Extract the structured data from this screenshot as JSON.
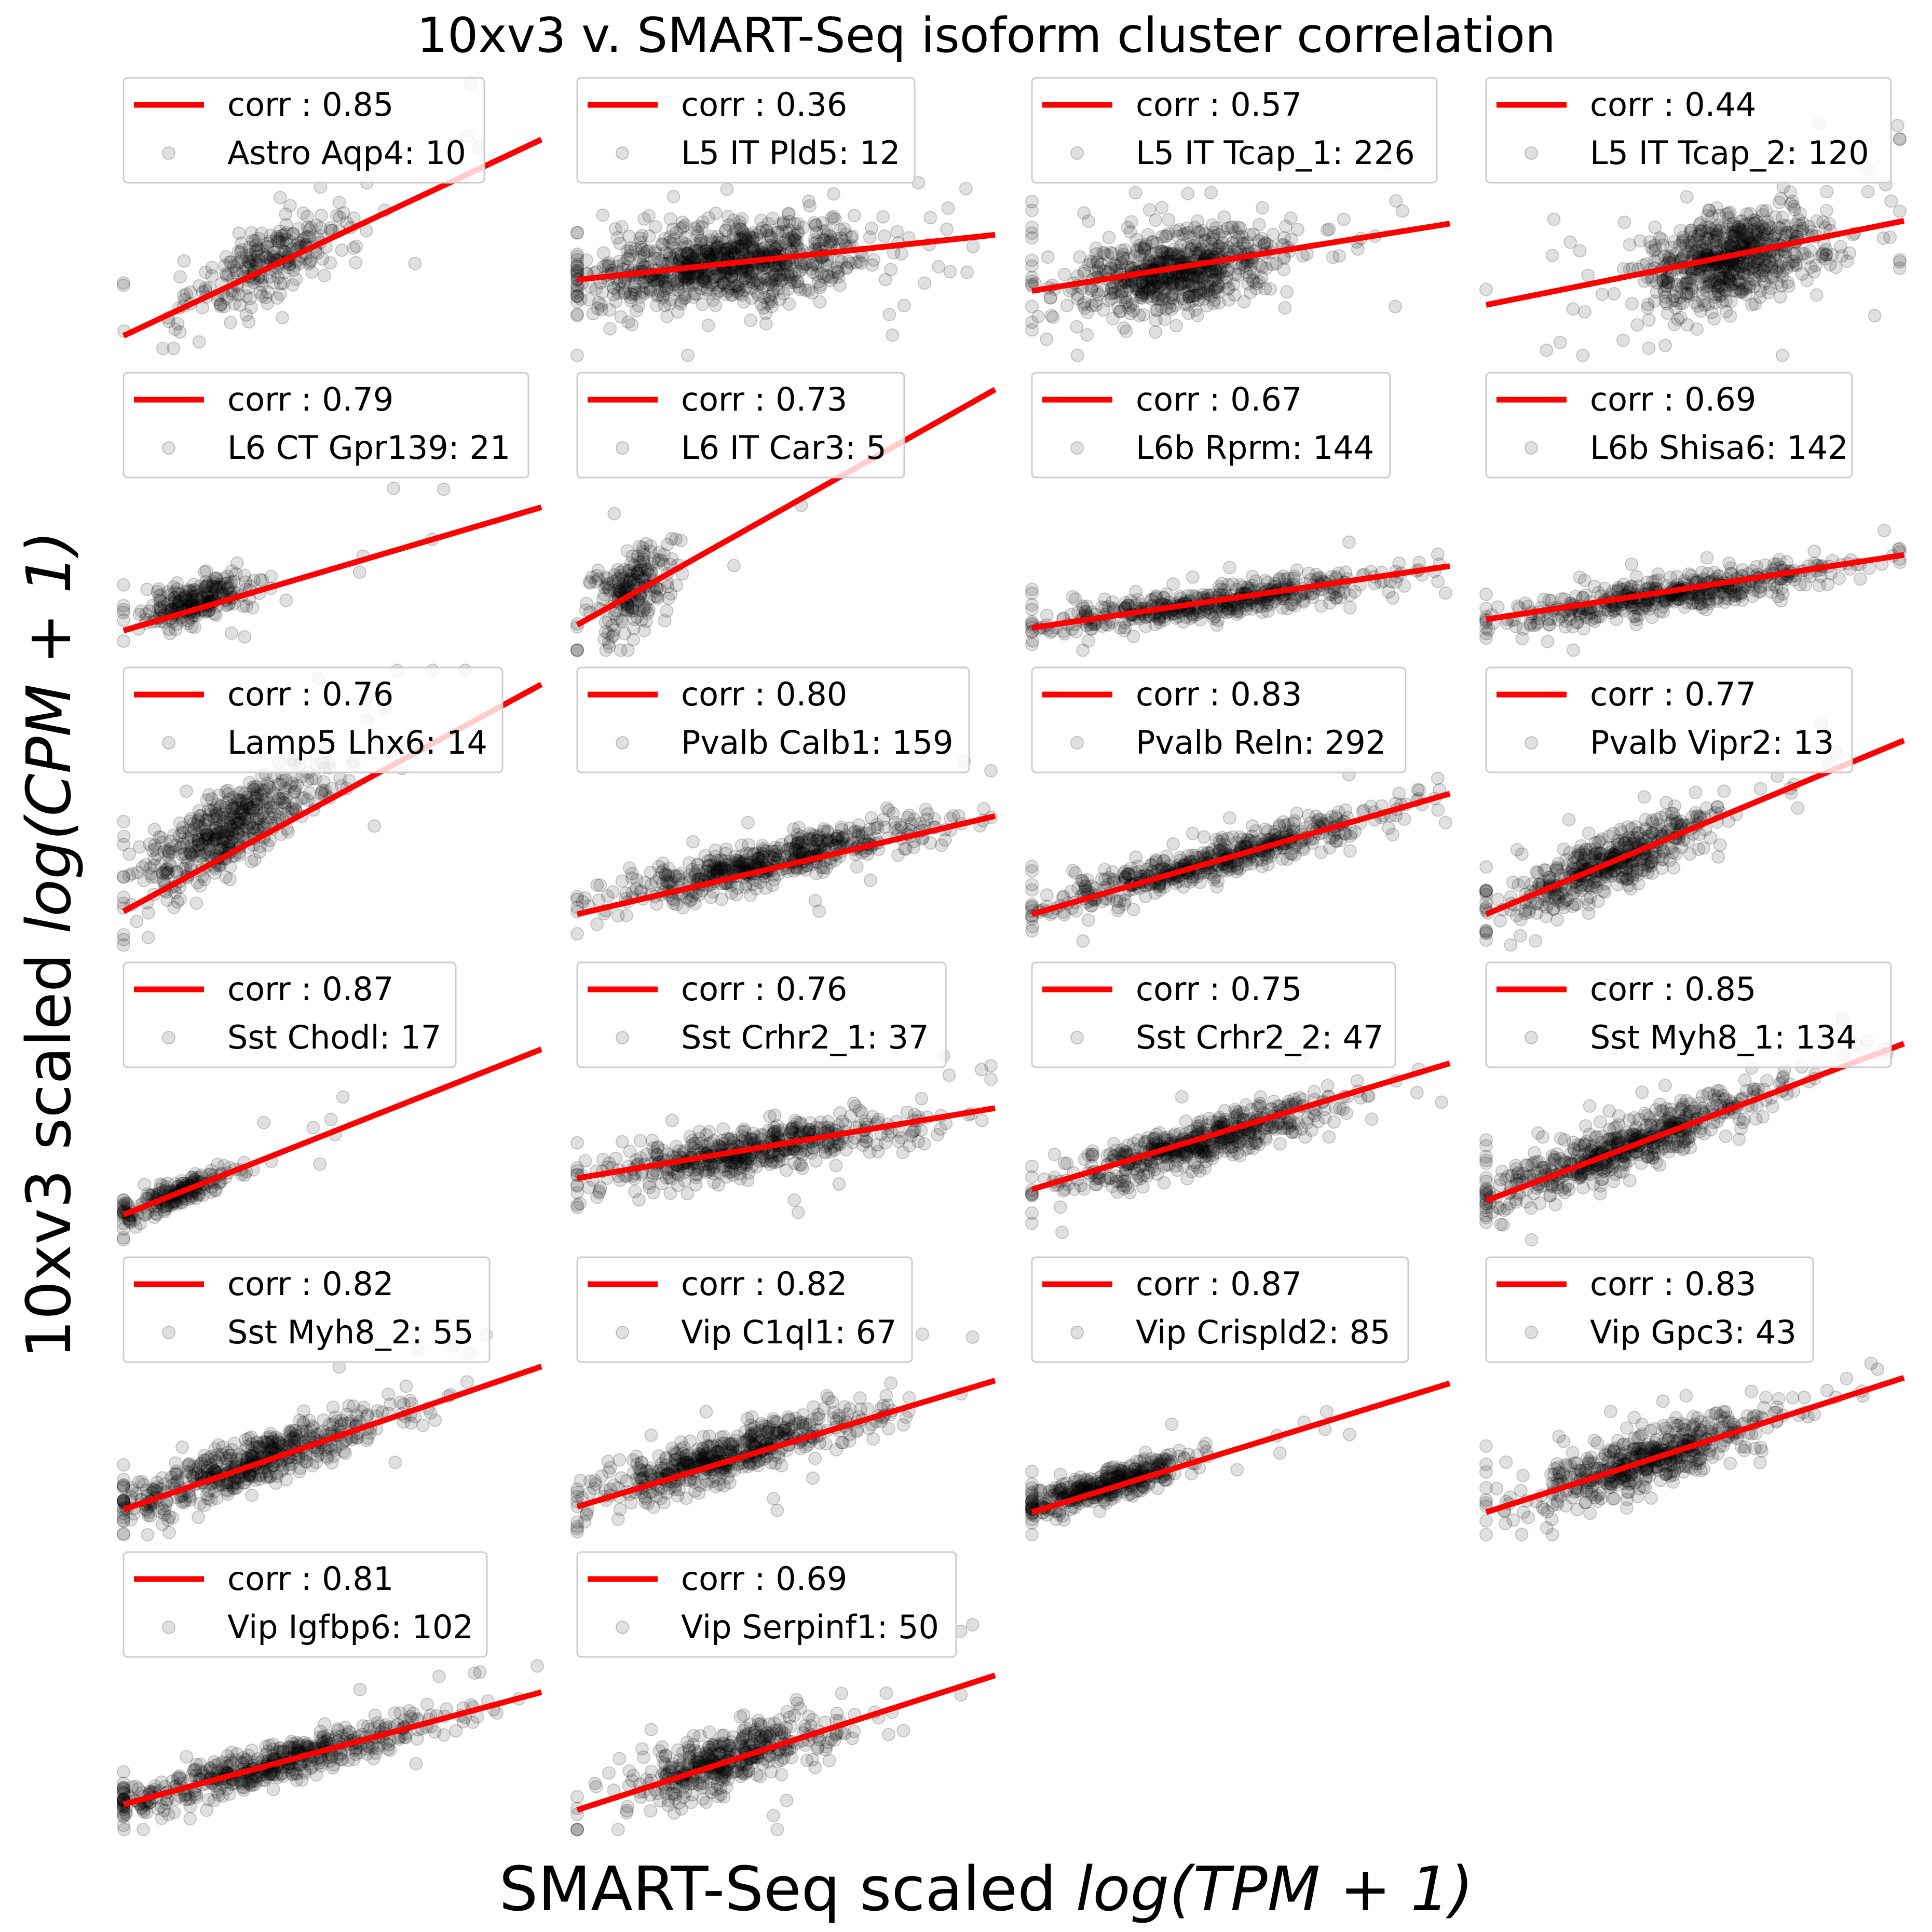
{
  "chart_data": {
    "type": "scatter",
    "title": "10xv3 v. SMART-Seq isoform cluster correlation",
    "xlabel": "SMART-Seq scaled log(TPM + 1)",
    "ylabel": "10xv3 scaled log(CPM + 1)",
    "xlabel_parts": {
      "plain": "SMART-Seq scaled ",
      "math": "log(TPM + 1)"
    },
    "ylabel_parts": {
      "plain": "10xv3 scaled ",
      "math": "log(CPM + 1)"
    },
    "grid": false,
    "legend_placement": "upper left",
    "colors": {
      "fit_line": "#ff0000",
      "points": "#000000"
    },
    "layout": {
      "columns": 4,
      "rows": 6
    },
    "panels": [
      {
        "name": "Astro Aqp4: 10",
        "corr": "corr : 0.85"
      },
      {
        "name": "L5 IT Pld5: 12",
        "corr": "corr : 0.36"
      },
      {
        "name": "L5 IT Tcap_1: 226",
        "corr": "corr : 0.57"
      },
      {
        "name": "L5 IT Tcap_2: 120",
        "corr": "corr : 0.44"
      },
      {
        "name": "L6 CT Gpr139: 21",
        "corr": "corr : 0.79"
      },
      {
        "name": "L6 IT Car3: 5",
        "corr": "corr : 0.73"
      },
      {
        "name": "L6b Rprm: 144",
        "corr": "corr : 0.67"
      },
      {
        "name": "L6b Shisa6: 142",
        "corr": "corr : 0.69"
      },
      {
        "name": "Lamp5 Lhx6: 14",
        "corr": "corr : 0.76"
      },
      {
        "name": "Pvalb Calb1: 159",
        "corr": "corr : 0.80"
      },
      {
        "name": "Pvalb Reln: 292",
        "corr": "corr : 0.83"
      },
      {
        "name": "Pvalb Vipr2: 13",
        "corr": "corr : 0.77"
      },
      {
        "name": "Sst Chodl: 17",
        "corr": "corr : 0.87"
      },
      {
        "name": "Sst Crhr2_1: 37",
        "corr": "corr : 0.76"
      },
      {
        "name": "Sst Crhr2_2: 47",
        "corr": "corr : 0.75"
      },
      {
        "name": "Sst Myh8_1: 134",
        "corr": "corr : 0.85"
      },
      {
        "name": "Sst Myh8_2: 55",
        "corr": "corr : 0.82"
      },
      {
        "name": "Vip C1ql1: 67",
        "corr": "corr : 0.82"
      },
      {
        "name": "Vip Crispld2: 85",
        "corr": "corr : 0.87"
      },
      {
        "name": "Vip Gpc3: 43",
        "corr": "corr : 0.83"
      },
      {
        "name": "Vip Igfbp6: 102",
        "corr": "corr : 0.81"
      },
      {
        "name": "Vip Serpinf1: 50",
        "corr": "corr : 0.69"
      }
    ]
  }
}
